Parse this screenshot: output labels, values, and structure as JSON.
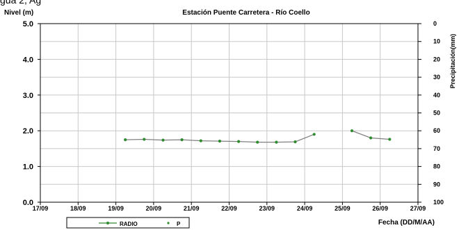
{
  "chart_data": {
    "type": "line",
    "title": "Estación Puente Carretera - Río Coello",
    "top_fragment": "gua 2, Ag",
    "ylabel": "Nivel (m)",
    "y2label": "Precipitación(mm)",
    "xlabel": "Fecha (DD/M/AA)",
    "x_ticks": [
      "17/09",
      "18/09",
      "19/09",
      "20/09",
      "21/09",
      "22/09",
      "23/09",
      "24/09",
      "25/09",
      "26/09",
      "27/09"
    ],
    "xlim": [
      17,
      27
    ],
    "y_ticks": [
      "0.0",
      "1.0",
      "2.0",
      "3.0",
      "4.0",
      "5.0"
    ],
    "ylim": [
      0,
      5
    ],
    "y2_ticks": [
      "0",
      "10",
      "20",
      "30",
      "40",
      "50",
      "60",
      "70",
      "80",
      "90",
      "100"
    ],
    "y2lim": [
      0,
      100
    ],
    "y2_inverted": true,
    "grid": true,
    "series": [
      {
        "name": "RADIO",
        "color": "#808080",
        "marker_color": "#2e8b2e",
        "segments": [
          [
            {
              "x": 19.25,
              "y": 1.75
            },
            {
              "x": 19.75,
              "y": 1.76
            },
            {
              "x": 20.25,
              "y": 1.74
            },
            {
              "x": 20.75,
              "y": 1.75
            },
            {
              "x": 21.25,
              "y": 1.72
            },
            {
              "x": 21.75,
              "y": 1.71
            },
            {
              "x": 22.25,
              "y": 1.7
            },
            {
              "x": 22.75,
              "y": 1.68
            },
            {
              "x": 23.25,
              "y": 1.68
            },
            {
              "x": 23.75,
              "y": 1.69
            },
            {
              "x": 24.25,
              "y": 1.9
            }
          ],
          [
            {
              "x": 25.25,
              "y": 2.0
            },
            {
              "x": 25.75,
              "y": 1.8
            },
            {
              "x": 26.25,
              "y": 1.76
            }
          ]
        ]
      },
      {
        "name": "P",
        "color": "#2e8b2e",
        "values": []
      }
    ],
    "legend_position": "bottom-left"
  }
}
